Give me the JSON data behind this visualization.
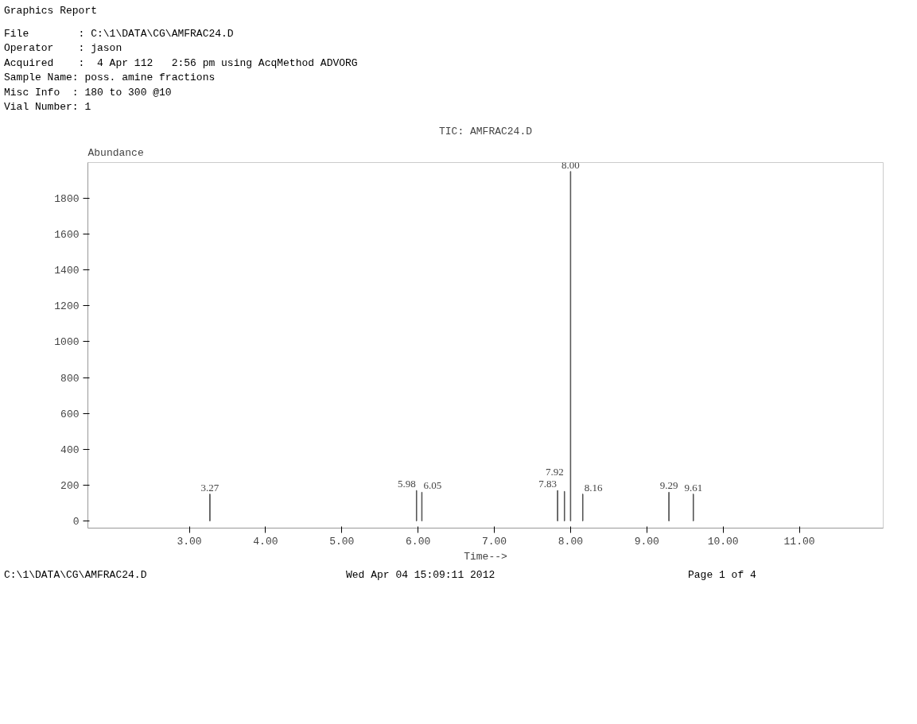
{
  "chart_data": {
    "type": "bar",
    "title": "TIC: AMFRAC24.D",
    "xlabel": "Time-->",
    "ylabel": "Abundance",
    "x": [
      3.27,
      5.98,
      6.05,
      7.83,
      7.92,
      8.0,
      8.16,
      9.29,
      9.61
    ],
    "values": [
      150,
      170,
      160,
      170,
      165,
      1950,
      150,
      160,
      150
    ],
    "color": "#555555",
    "xlim": [
      1.67,
      12.1
    ],
    "ylim": [
      -40,
      2000
    ],
    "xticks": [
      {
        "value": 3,
        "label": "3.00"
      },
      {
        "value": 4,
        "label": "4.00"
      },
      {
        "value": 5,
        "label": "5.00"
      },
      {
        "value": 6,
        "label": "6.00"
      },
      {
        "value": 7,
        "label": "7.00"
      },
      {
        "value": 8,
        "label": "8.00"
      },
      {
        "value": 9,
        "label": "9.00"
      },
      {
        "value": 10,
        "label": "10.00"
      },
      {
        "value": 11,
        "label": "11.00"
      }
    ],
    "yticks": [
      0,
      200,
      400,
      600,
      800,
      1000,
      1200,
      1400,
      1600,
      1800
    ],
    "grid": false,
    "annotations": [
      "Graphics Report",
      "File        : C:\\1\\DATA\\CG\\AMFRAC24.D",
      "Operator    : jason",
      "Acquired    :  4 Apr 112   2:56 pm using AcqMethod ADVORG",
      "Sample Name: poss. amine fractions",
      "Misc Info  : 180 to 300 @10",
      "Vial Number: 1",
      "C:\\1\\DATA\\CG\\AMFRAC24.D",
      "Wed Apr 04 15:09:11 2012",
      "Page 1 of 4",
      {
        "text": "3.27",
        "x": 3.27,
        "y": 150
      },
      {
        "text": "5.98",
        "x": 5.98,
        "y": 170
      },
      {
        "text": "6.05",
        "x": 6.05,
        "y": 160
      },
      {
        "text": "7.83",
        "x": 7.83,
        "y": 170
      },
      {
        "text": "7.92",
        "x": 7.92,
        "y": 165
      },
      {
        "text": "8.00",
        "x": 8.0,
        "y": 1950
      },
      {
        "text": "8.16",
        "x": 8.16,
        "y": 150
      },
      {
        "text": "9.29",
        "x": 9.29,
        "y": 160
      },
      {
        "text": "9.61",
        "x": 9.61,
        "y": 150
      }
    ]
  }
}
